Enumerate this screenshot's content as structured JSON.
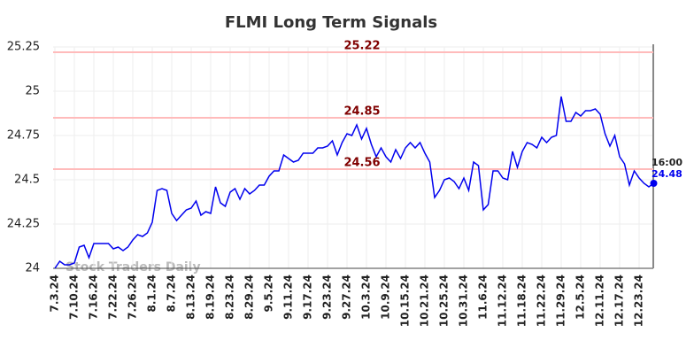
{
  "chart_data": {
    "type": "line",
    "title": "FLMI Long Term Signals",
    "categories": [
      "7.3.24",
      null,
      null,
      null,
      "7.10.24",
      null,
      null,
      null,
      "7.16.24",
      null,
      null,
      null,
      "7.22.24",
      null,
      null,
      null,
      "7.26.24",
      null,
      null,
      null,
      "8.1.24",
      null,
      null,
      null,
      "8.7.24",
      null,
      null,
      null,
      "8.13.24",
      null,
      null,
      null,
      "8.19.24",
      null,
      null,
      null,
      "8.23.24",
      null,
      null,
      null,
      "8.29.24",
      null,
      null,
      null,
      "9.5.24",
      null,
      null,
      null,
      "9.11.24",
      null,
      null,
      null,
      "9.17.24",
      null,
      null,
      null,
      "9.23.24",
      null,
      null,
      null,
      "9.27.24",
      null,
      null,
      null,
      "10.3.24",
      null,
      null,
      null,
      "10.9.24",
      null,
      null,
      null,
      "10.15.24",
      null,
      null,
      null,
      "10.21.24",
      null,
      null,
      null,
      "10.25.24",
      null,
      null,
      null,
      "10.31.24",
      null,
      null,
      null,
      "11.6.24",
      null,
      null,
      null,
      "11.12.24",
      null,
      null,
      null,
      "11.18.24",
      null,
      null,
      null,
      "11.22.24",
      null,
      null,
      null,
      "11.29.24",
      null,
      null,
      null,
      "12.5.24",
      null,
      null,
      null,
      "12.11.24",
      null,
      null,
      null,
      "12.17.24",
      null,
      null,
      null,
      "12.23.24",
      null,
      null,
      null
    ],
    "series": [
      {
        "name": "FLMI",
        "color": "#0000ee",
        "values": [
          24.0,
          24.04,
          24.02,
          24.02,
          24.03,
          24.12,
          24.13,
          24.06,
          24.14,
          24.14,
          24.14,
          24.14,
          24.11,
          24.12,
          24.1,
          24.12,
          24.16,
          24.19,
          24.18,
          24.2,
          24.26,
          24.44,
          24.45,
          24.44,
          24.31,
          24.27,
          24.3,
          24.33,
          24.34,
          24.38,
          24.3,
          24.32,
          24.31,
          24.46,
          24.37,
          24.35,
          24.43,
          24.45,
          24.39,
          24.45,
          24.42,
          24.44,
          24.47,
          24.47,
          24.52,
          24.55,
          24.55,
          24.64,
          24.62,
          24.6,
          24.61,
          24.65,
          24.65,
          24.65,
          24.68,
          24.68,
          24.69,
          24.72,
          24.64,
          24.71,
          24.76,
          24.75,
          24.81,
          24.73,
          24.79,
          24.7,
          24.63,
          24.68,
          24.63,
          24.6,
          24.67,
          24.62,
          24.68,
          24.71,
          24.68,
          24.71,
          24.65,
          24.6,
          24.4,
          24.44,
          24.5,
          24.51,
          24.49,
          24.45,
          24.51,
          24.44,
          24.6,
          24.58,
          24.33,
          24.36,
          24.55,
          24.55,
          24.51,
          24.5,
          24.66,
          24.57,
          24.66,
          24.71,
          24.7,
          24.68,
          24.74,
          24.71,
          24.74,
          24.75,
          24.97,
          24.83,
          24.83,
          24.88,
          24.86,
          24.89,
          24.89,
          24.9,
          24.87,
          24.76,
          24.69,
          24.75,
          24.63,
          24.59,
          24.47,
          24.55,
          24.51,
          24.48,
          24.46,
          24.48
        ]
      }
    ],
    "ylim": [
      24,
      25.25
    ],
    "yticks": [
      24,
      24.25,
      24.5,
      24.75,
      25,
      25.25
    ],
    "grid": true,
    "hlines": [
      {
        "value": 25.22,
        "color": "#ffbbbb"
      },
      {
        "value": 24.85,
        "color": "#ffbbbb"
      },
      {
        "value": 24.56,
        "color": "#ffbbbb"
      }
    ],
    "last_time": "16:00",
    "watermark": "Stock Traders Daily"
  }
}
